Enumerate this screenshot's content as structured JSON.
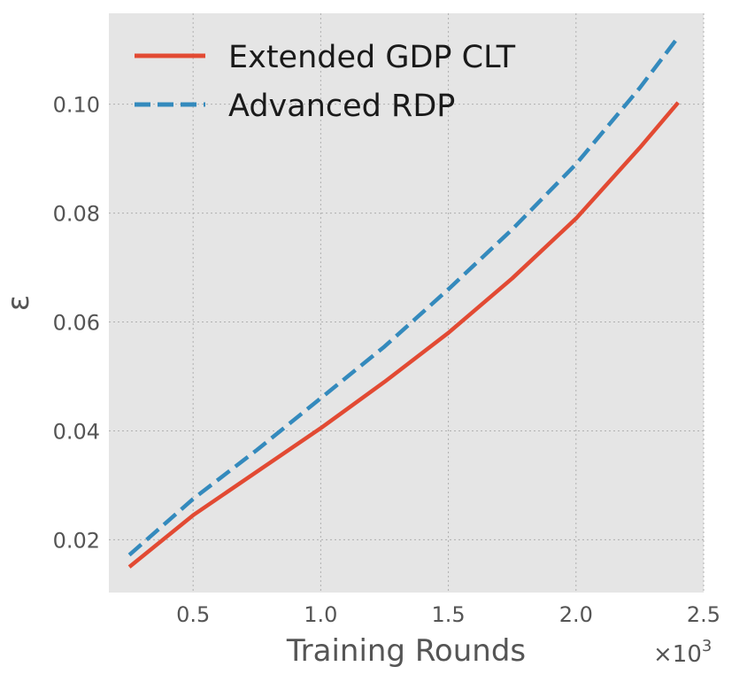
{
  "chart_data": {
    "type": "line",
    "title": "",
    "xlabel": "Training Rounds",
    "ylabel": "ε",
    "x_scale_label": "×10",
    "x_scale_exponent": "3",
    "xlim": [
      0.17,
      2.5
    ],
    "ylim": [
      0.0103,
      0.1167
    ],
    "xticks": [
      0.5,
      1.0,
      1.5,
      2.0,
      2.5
    ],
    "xtick_labels": [
      "0.5",
      "1.0",
      "1.5",
      "2.0",
      "2.5"
    ],
    "yticks": [
      0.02,
      0.04,
      0.06,
      0.08,
      0.1
    ],
    "ytick_labels": [
      "0.02",
      "0.04",
      "0.06",
      "0.08",
      "0.10"
    ],
    "grid": true,
    "legend_position": "top-left",
    "series": [
      {
        "name": "Extended GDP CLT",
        "color": "#e24a33",
        "style": "solid",
        "x": [
          0.25,
          0.5,
          0.75,
          1.0,
          1.25,
          1.5,
          1.75,
          2.0,
          2.25,
          2.4
        ],
        "y": [
          0.015,
          0.0245,
          0.0325,
          0.0405,
          0.049,
          0.058,
          0.068,
          0.079,
          0.092,
          0.1003
        ]
      },
      {
        "name": "Advanced RDP",
        "color": "#348abd",
        "style": "dashed",
        "x": [
          0.25,
          0.5,
          0.75,
          1.0,
          1.25,
          1.5,
          1.75,
          2.0,
          2.25,
          2.4
        ],
        "y": [
          0.0172,
          0.0275,
          0.0365,
          0.046,
          0.0555,
          0.066,
          0.077,
          0.089,
          0.103,
          0.1123
        ]
      }
    ]
  }
}
